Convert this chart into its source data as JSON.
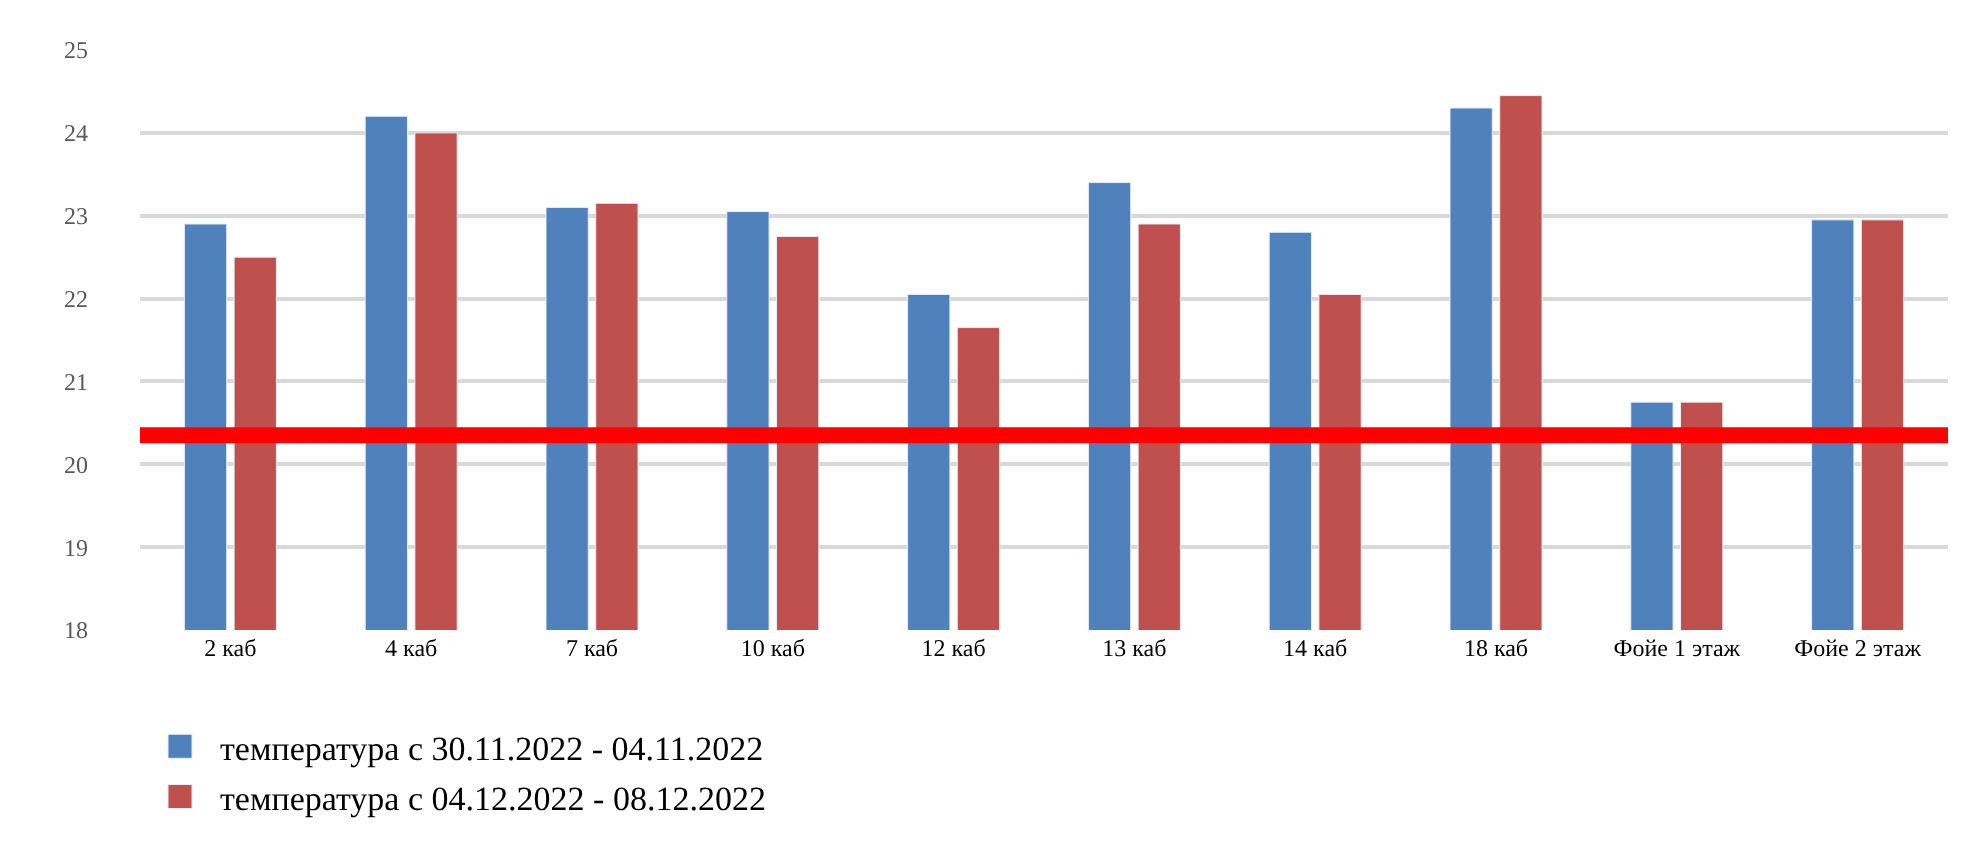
{
  "chart_data": {
    "type": "bar",
    "categories": [
      "2 каб",
      "4 каб",
      "7 каб",
      "10 каб",
      "12 каб",
      "13 каб",
      "14 каб",
      "18 каб",
      "Фойе 1 этаж",
      "Фойе 2 этаж"
    ],
    "series": [
      {
        "name": "температура с 30.11.2022 - 04.11.2022",
        "color": "#4f81bd",
        "values": [
          22.9,
          24.2,
          23.1,
          23.05,
          22.05,
          23.4,
          22.8,
          24.3,
          20.75,
          22.95
        ]
      },
      {
        "name": "температура с 04.12.2022 - 08.12.2022",
        "color": "#c0504d",
        "values": [
          22.5,
          24.0,
          23.15,
          22.75,
          21.65,
          22.9,
          22.05,
          24.45,
          20.75,
          22.95
        ]
      }
    ],
    "ylim": [
      18,
      25
    ],
    "yticks": [
      18,
      19,
      20,
      21,
      22,
      23,
      24,
      25
    ],
    "grid": "y",
    "legend": "bottom",
    "ref_lines": [
      {
        "axis": "y",
        "value": 20.35,
        "color": "#ff0000"
      }
    ]
  }
}
